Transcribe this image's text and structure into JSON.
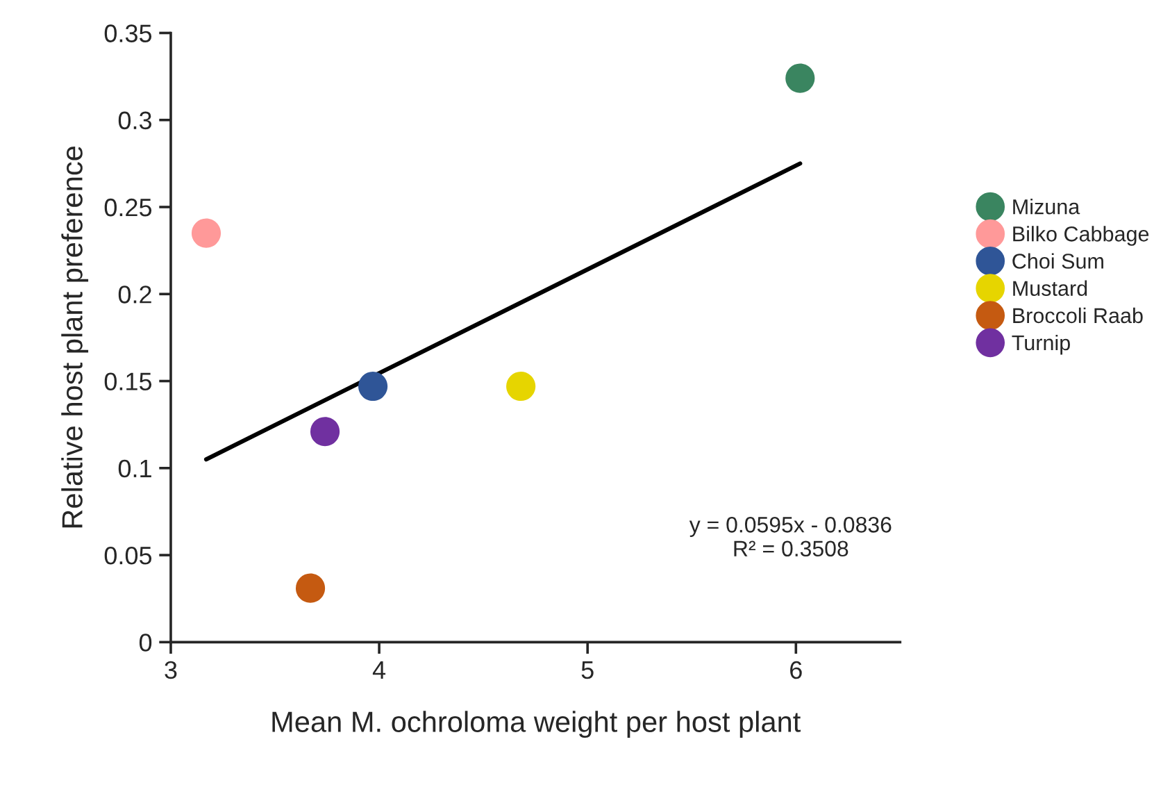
{
  "chart_data": {
    "type": "scatter",
    "xlabel": "Mean M. ochroloma weight per host plant",
    "ylabel": "Relative host plant preference",
    "xlim": [
      3,
      6.5
    ],
    "xticks": [
      3,
      4,
      5,
      6
    ],
    "ylim": [
      0,
      0.35
    ],
    "yticks": [
      0,
      0.05,
      0.1,
      0.15,
      0.2,
      0.25,
      0.3,
      0.35
    ],
    "grid": false,
    "legend": "right",
    "marker": "circle",
    "series": [
      {
        "name": "Mizuna",
        "color": "#3a8560",
        "x": [
          6.02
        ],
        "values": [
          0.324
        ]
      },
      {
        "name": "Bilko Cabbage",
        "color": "#ff9999",
        "x": [
          3.17
        ],
        "values": [
          0.235
        ]
      },
      {
        "name": "Choi Sum",
        "color": "#2f5597",
        "x": [
          3.97
        ],
        "values": [
          0.147
        ]
      },
      {
        "name": "Mustard",
        "color": "#e6d500",
        "x": [
          4.68
        ],
        "values": [
          0.147
        ]
      },
      {
        "name": "Broccoli Raab",
        "color": "#c55a11",
        "x": [
          3.67
        ],
        "values": [
          0.031
        ]
      },
      {
        "name": "Turnip",
        "color": "#7030a0",
        "x": [
          3.74
        ],
        "values": [
          0.121
        ]
      },
      {
        "type": "line",
        "marker": "none",
        "color": "#000000",
        "x": [
          3.17,
          6.02
        ],
        "values": [
          0.105,
          0.275
        ]
      }
    ],
    "annotations": [
      "y = 0.0595x - 0.0836",
      "R² = 0.3508"
    ]
  }
}
